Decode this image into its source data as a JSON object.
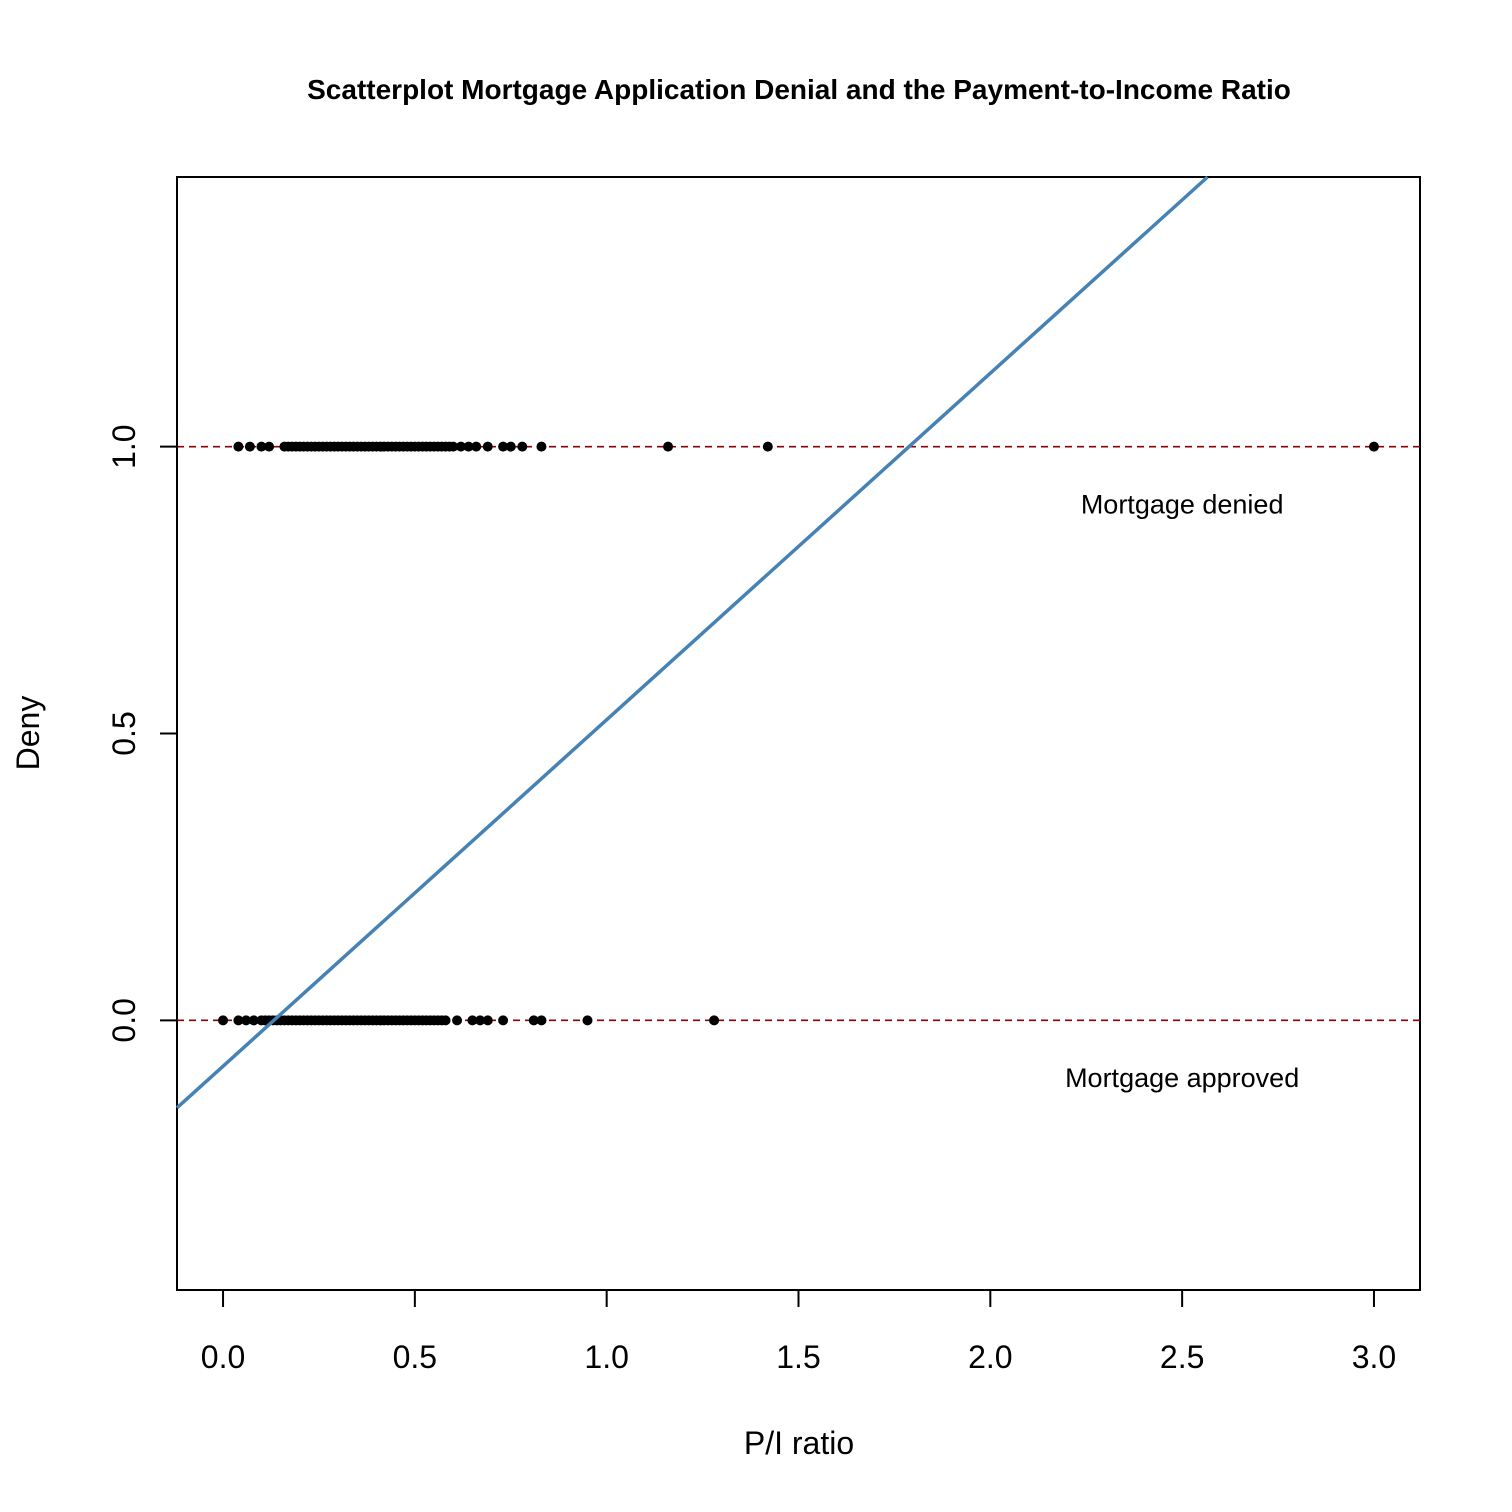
{
  "chart_data": {
    "type": "scatter",
    "title": "Scatterplot Mortgage Application Denial and the Payment-to-Income Ratio",
    "xlabel": "P/I ratio",
    "ylabel": "Deny",
    "xlim": [
      -0.12,
      3.12
    ],
    "ylim": [
      -0.47,
      1.47
    ],
    "x_ticks": [
      0.0,
      0.5,
      1.0,
      1.5,
      2.0,
      2.5,
      3.0
    ],
    "x_tick_labels": [
      "0.0",
      "0.5",
      "1.0",
      "1.5",
      "2.0",
      "2.5",
      "3.0"
    ],
    "y_ticks": [
      0.0,
      0.5,
      1.0
    ],
    "y_tick_labels": [
      "0.0",
      "0.5",
      "1.0"
    ],
    "grid": false,
    "colors": {
      "points": "#000000",
      "fit_line": "#4682b4",
      "reference_lines": "#8b0000"
    },
    "reference_lines": [
      0,
      1
    ],
    "fit_line": {
      "intercept": -0.08,
      "slope": 0.604
    },
    "annotations": [
      {
        "text": "Mortgage denied",
        "x": 2.5,
        "y": 0.9
      },
      {
        "text": "Mortgage approved",
        "x": 2.5,
        "y": -0.1
      }
    ],
    "series": [
      {
        "y": 1,
        "x": [
          0.04,
          0.07,
          0.1,
          0.12,
          0.16,
          0.17,
          0.18,
          0.19,
          0.2,
          0.21,
          0.22,
          0.23,
          0.24,
          0.25,
          0.26,
          0.27,
          0.28,
          0.29,
          0.3,
          0.31,
          0.32,
          0.33,
          0.34,
          0.35,
          0.36,
          0.37,
          0.38,
          0.39,
          0.4,
          0.41,
          0.42,
          0.43,
          0.44,
          0.45,
          0.46,
          0.47,
          0.48,
          0.49,
          0.5,
          0.51,
          0.52,
          0.53,
          0.54,
          0.55,
          0.56,
          0.57,
          0.58,
          0.59,
          0.6,
          0.62,
          0.64,
          0.66,
          0.69,
          0.73,
          0.75,
          0.78,
          0.83,
          1.16,
          1.42,
          3.0
        ]
      },
      {
        "y": 0,
        "x": [
          0.0,
          0.04,
          0.06,
          0.08,
          0.1,
          0.11,
          0.12,
          0.13,
          0.14,
          0.15,
          0.16,
          0.17,
          0.18,
          0.19,
          0.2,
          0.21,
          0.22,
          0.23,
          0.24,
          0.25,
          0.26,
          0.27,
          0.28,
          0.29,
          0.3,
          0.31,
          0.32,
          0.33,
          0.34,
          0.35,
          0.36,
          0.37,
          0.38,
          0.39,
          0.4,
          0.41,
          0.42,
          0.43,
          0.44,
          0.45,
          0.46,
          0.47,
          0.48,
          0.49,
          0.5,
          0.51,
          0.52,
          0.53,
          0.54,
          0.55,
          0.56,
          0.57,
          0.58,
          0.61,
          0.65,
          0.67,
          0.69,
          0.73,
          0.81,
          0.83,
          0.95,
          1.28
        ]
      }
    ]
  }
}
